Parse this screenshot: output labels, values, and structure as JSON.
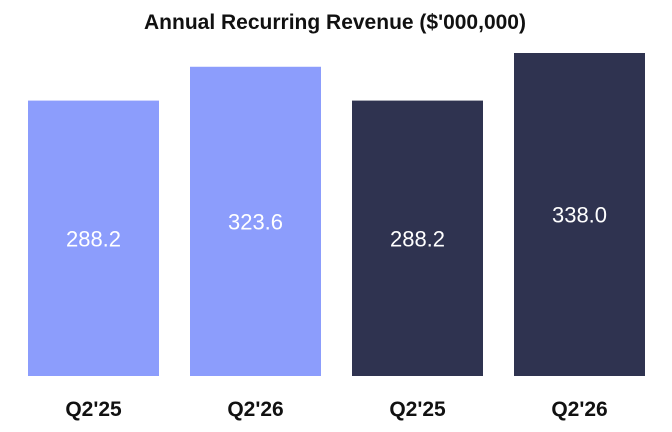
{
  "chart_data": {
    "type": "bar",
    "title": "Annual Recurring Revenue ($'000,000)",
    "xlabel": "",
    "ylabel": "",
    "categories": [
      "Q2'25",
      "Q2'26",
      "Q2'25",
      "Q2'26"
    ],
    "values": [
      288.2,
      323.6,
      288.2,
      338.0
    ],
    "value_labels": [
      "288.2",
      "323.6",
      "288.2",
      "338.0"
    ],
    "bar_colors": [
      "#8c9dfc",
      "#8c9dfc",
      "#2f3350",
      "#2f3350"
    ],
    "ylim": [
      0,
      338.0
    ],
    "grid": false,
    "legend": "none",
    "axis_ticks_visible": false
  }
}
